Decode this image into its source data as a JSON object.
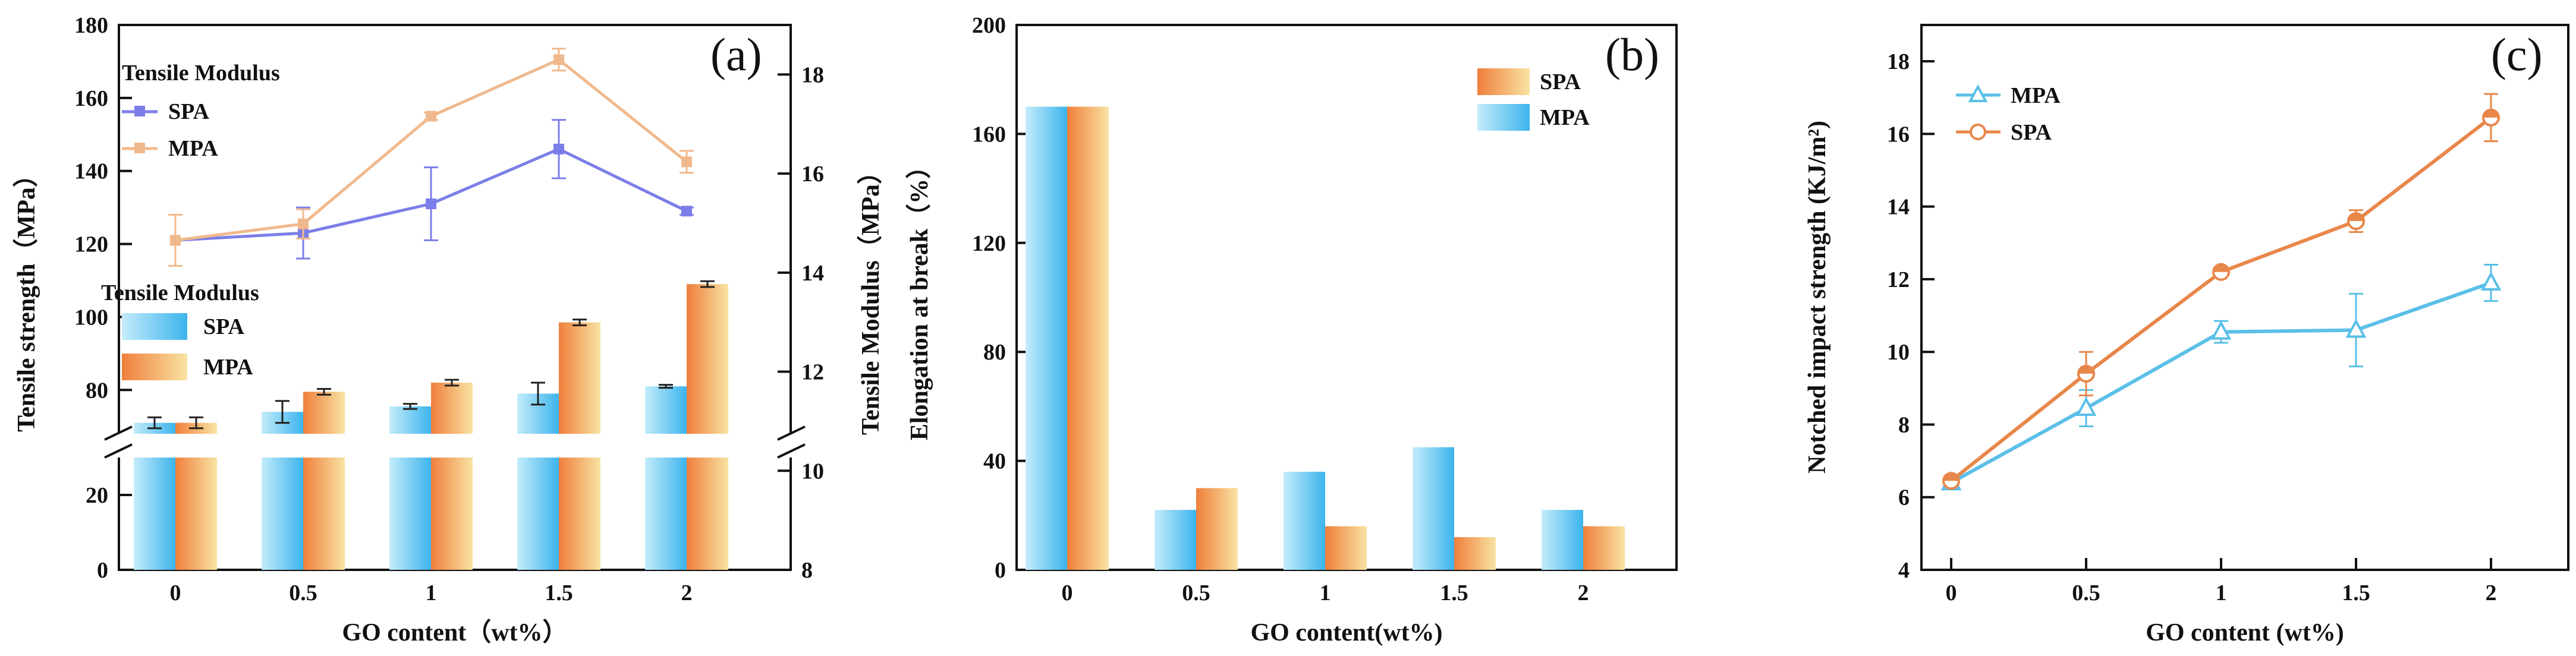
{
  "chart_data": [
    {
      "type": "bar",
      "panel_label": "(a)",
      "categories": [
        "0",
        "0.5",
        "1",
        "1.5",
        "2"
      ],
      "xlabel": "GO content（wt%）",
      "ylabel": "Tensile strength（MPa）",
      "ylabel2": "Tensile Modulus（MPa）",
      "ylim_lower": [
        0,
        30
      ],
      "ylim_upper": [
        68,
        180
      ],
      "yticks_left": [
        "0",
        "20",
        "80",
        "100",
        "120",
        "140",
        "160",
        "180"
      ],
      "yticks_right": [
        "8",
        "10",
        "12",
        "14",
        "16",
        "18"
      ],
      "ylim_right": [
        8,
        19
      ],
      "line_legend_title": "Tensile Modulus",
      "bar_legend_title": "Tensile Modulus",
      "lines": [
        {
          "name": "SPA",
          "color": "#7b7ee8",
          "values": [
            121,
            123,
            131,
            146,
            129
          ],
          "errors": [
            0,
            7,
            10,
            8,
            1
          ]
        },
        {
          "name": "MPA",
          "color": "#f0b98d",
          "values": [
            121,
            125.5,
            155,
            170.5,
            142.5
          ],
          "errors": [
            7,
            4,
            1,
            3,
            3
          ]
        }
      ],
      "series": [
        {
          "name": "SPA",
          "values": [
            71,
            74,
            75.5,
            79,
            81
          ],
          "errors": [
            1.5,
            3,
            0.7,
            3,
            0.4
          ]
        },
        {
          "name": "MPA",
          "values": [
            71,
            79.5,
            82,
            98.5,
            109
          ],
          "errors": [
            1.5,
            0.8,
            0.8,
            0.8,
            0.8
          ]
        }
      ]
    },
    {
      "type": "bar",
      "panel_label": "(b)",
      "categories": [
        "0",
        "0.5",
        "1",
        "1.5",
        "2"
      ],
      "xlabel": "GO content(wt%)",
      "ylabel": "Elongation at break（%）",
      "ylim": [
        0,
        200
      ],
      "yticks": [
        "0",
        "40",
        "80",
        "120",
        "160",
        "200"
      ],
      "series": [
        {
          "name": "MPA",
          "values": [
            170,
            22,
            36,
            45,
            22
          ]
        },
        {
          "name": "SPA",
          "values": [
            170,
            30,
            16,
            12,
            16
          ]
        }
      ],
      "legend": [
        "SPA",
        "MPA"
      ]
    },
    {
      "type": "line",
      "panel_label": "(c)",
      "x": [
        0,
        0.5,
        1,
        1.5,
        2
      ],
      "xticks": [
        "0",
        "0.5",
        "1",
        "1.5",
        "2"
      ],
      "xlabel": "GO content (wt%)",
      "ylabel": "Notched impact strength (KJ/m²)",
      "ylim": [
        4,
        19
      ],
      "yticks": [
        "4",
        "6",
        "8",
        "10",
        "12",
        "14",
        "16",
        "18"
      ],
      "series": [
        {
          "name": "MPA",
          "color": "#5bbfe8",
          "values": [
            6.4,
            8.45,
            10.55,
            10.6,
            11.9
          ],
          "errors": [
            0.1,
            0.5,
            0.3,
            1.0,
            0.5
          ]
        },
        {
          "name": "SPA",
          "color": "#e8874a",
          "values": [
            6.45,
            9.4,
            12.2,
            13.6,
            16.45
          ],
          "errors": [
            0.1,
            0.6,
            0.1,
            0.3,
            0.65
          ]
        }
      ]
    }
  ]
}
